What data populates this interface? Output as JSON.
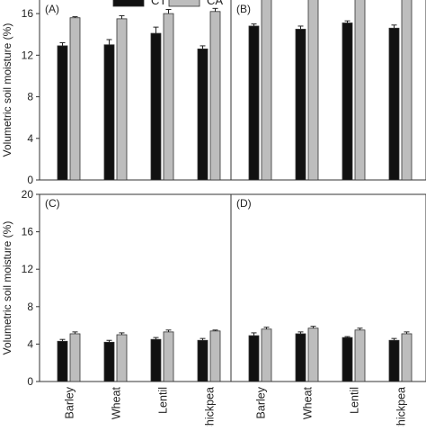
{
  "chart_data": [
    {
      "panel": "(A)",
      "type": "bar",
      "categories": [
        "Barley",
        "Wheat",
        "Lentil",
        "Chickpea"
      ],
      "series": [
        {
          "name": "CT",
          "values": [
            12.9,
            13.0,
            14.1,
            12.6
          ],
          "errors": [
            0.3,
            0.5,
            0.6,
            0.3
          ]
        },
        {
          "name": "CA",
          "values": [
            15.6,
            15.5,
            16.0,
            16.2
          ],
          "errors": [
            0.1,
            0.3,
            0.4,
            0.3
          ]
        }
      ],
      "ylabel": "Volumetric soil moisture (%)",
      "ylim": [
        0,
        18
      ],
      "yticks": [
        0,
        4,
        8,
        12,
        16
      ]
    },
    {
      "panel": "(B)",
      "type": "bar",
      "categories": [
        "Barley",
        "Wheat",
        "Lentil",
        "Chickpea"
      ],
      "series": [
        {
          "name": "CT",
          "values": [
            14.8,
            14.5,
            15.1,
            14.6
          ],
          "errors": [
            0.2,
            0.3,
            0.2,
            0.3
          ]
        },
        {
          "name": "CA",
          "values": [
            17.5,
            17.4,
            17.9,
            17.6
          ],
          "errors": [
            0.1,
            0.3,
            0.3,
            0.5
          ]
        }
      ],
      "ylim": [
        0,
        18
      ]
    },
    {
      "panel": "(C)",
      "type": "bar",
      "categories": [
        "Barley",
        "Wheat",
        "Lentil",
        "Chickpea"
      ],
      "series": [
        {
          "name": "CT",
          "values": [
            4.3,
            4.2,
            4.5,
            4.4
          ],
          "errors": [
            0.2,
            0.2,
            0.2,
            0.2
          ]
        },
        {
          "name": "CA",
          "values": [
            5.1,
            5.0,
            5.3,
            5.4
          ],
          "errors": [
            0.2,
            0.2,
            0.2,
            0.1
          ]
        }
      ],
      "ylabel": "Volumetric soil moisture (%)",
      "ylim": [
        0,
        20
      ],
      "yticks": [
        0,
        4,
        8,
        12,
        16,
        20
      ]
    },
    {
      "panel": "(D)",
      "type": "bar",
      "categories": [
        "Barley",
        "Wheat",
        "Lentil",
        "Chickpea"
      ],
      "series": [
        {
          "name": "CT",
          "values": [
            4.9,
            5.1,
            4.7,
            4.4
          ],
          "errors": [
            0.3,
            0.2,
            0.1,
            0.2
          ]
        },
        {
          "name": "CA",
          "values": [
            5.6,
            5.7,
            5.5,
            5.1
          ],
          "errors": [
            0.2,
            0.2,
            0.2,
            0.2
          ]
        }
      ],
      "ylim": [
        0,
        20
      ]
    }
  ],
  "legend": [
    {
      "name": "CT",
      "color": "#111111"
    },
    {
      "name": "CA",
      "color": "#bdbdbd"
    }
  ],
  "colors": {
    "ct": "#111111",
    "ca": "#bdbdbd",
    "axis": "#333333"
  }
}
